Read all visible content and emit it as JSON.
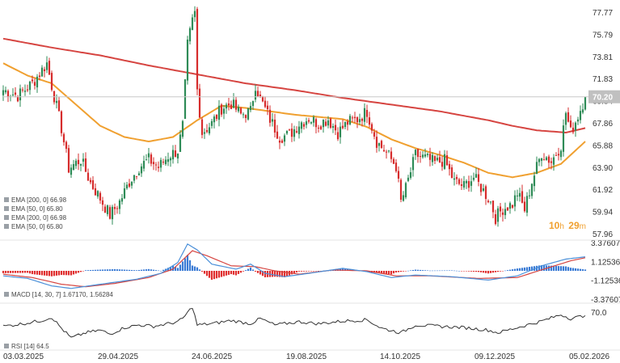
{
  "colors": {
    "bull": "#2e8b57",
    "bear": "#d62c2c",
    "ema200": "#d64541",
    "ema50": "#f0a030",
    "macd_line": "#4a90d9",
    "signal_line": "#d64541",
    "hist_pos": "#3a7bd5",
    "hist_neg": "#e03030",
    "rsi": "#333333",
    "price_tag": "#c0c0c0",
    "countdown": "#f0a030"
  },
  "chart_data": {
    "type": "candlestick",
    "price_axis": {
      "min": 57.96,
      "max": 77.77,
      "ticks": [
        "77.77",
        "75.79",
        "73.81",
        "71.83",
        "69.84",
        "67.86",
        "65.88",
        "63.90",
        "61.92",
        "59.94",
        "57.96"
      ]
    },
    "x_labels": [
      "03.03.2025",
      "29.04.2025",
      "24.06.2025",
      "19.08.2025",
      "14.10.2025",
      "09.12.2025",
      "05.02.2026"
    ],
    "last_price": "70.20",
    "countdown": {
      "hours": "10",
      "h_unit": "h",
      "minutes": "29",
      "m_unit": "m"
    },
    "price_keypoints": [
      [
        0,
        70.8
      ],
      [
        6,
        70.3
      ],
      [
        12,
        71.4
      ],
      [
        18,
        73.2
      ],
      [
        20,
        71.2
      ],
      [
        24,
        67.4
      ],
      [
        27,
        63.8
      ],
      [
        32,
        64.6
      ],
      [
        36,
        62.5
      ],
      [
        40,
        61.1
      ],
      [
        44,
        59.6
      ],
      [
        48,
        60.8
      ],
      [
        52,
        62.6
      ],
      [
        56,
        63.9
      ],
      [
        60,
        64.6
      ],
      [
        64,
        63.9
      ],
      [
        68,
        64.9
      ],
      [
        72,
        65.4
      ],
      [
        74,
        67.6
      ],
      [
        76,
        74.8
      ],
      [
        78,
        77.0
      ],
      [
        79,
        77.7
      ],
      [
        80,
        70.8
      ],
      [
        82,
        67.0
      ],
      [
        86,
        67.8
      ],
      [
        90,
        69.2
      ],
      [
        94,
        69.6
      ],
      [
        98,
        68.6
      ],
      [
        102,
        68.9
      ],
      [
        104,
        71.3
      ],
      [
        106,
        70.0
      ],
      [
        110,
        68.2
      ],
      [
        114,
        66.6
      ],
      [
        118,
        66.8
      ],
      [
        122,
        67.8
      ],
      [
        126,
        68.3
      ],
      [
        130,
        67.8
      ],
      [
        134,
        68.2
      ],
      [
        138,
        67.0
      ],
      [
        142,
        67.9
      ],
      [
        146,
        68.2
      ],
      [
        150,
        68.9
      ],
      [
        154,
        66.2
      ],
      [
        158,
        65.2
      ],
      [
        162,
        64.0
      ],
      [
        164,
        60.8
      ],
      [
        166,
        62.0
      ],
      [
        170,
        65.0
      ],
      [
        174,
        64.7
      ],
      [
        178,
        64.3
      ],
      [
        182,
        64.5
      ],
      [
        186,
        62.6
      ],
      [
        190,
        62.2
      ],
      [
        194,
        63.0
      ],
      [
        198,
        61.8
      ],
      [
        201,
        60.8
      ],
      [
        203,
        59.4
      ],
      [
        206,
        60.2
      ],
      [
        210,
        60.6
      ],
      [
        212,
        61.6
      ],
      [
        215,
        60.1
      ],
      [
        218,
        62.6
      ],
      [
        222,
        65.2
      ],
      [
        226,
        64.4
      ],
      [
        230,
        65.9
      ],
      [
        232,
        68.8
      ],
      [
        234,
        67.0
      ],
      [
        237,
        68.5
      ],
      [
        240,
        70.2
      ]
    ],
    "ema200_keypoints": [
      [
        0,
        75.4
      ],
      [
        20,
        74.6
      ],
      [
        40,
        73.9
      ],
      [
        60,
        73.0
      ],
      [
        80,
        72.2
      ],
      [
        100,
        71.4
      ],
      [
        120,
        70.8
      ],
      [
        140,
        70.1
      ],
      [
        160,
        69.5
      ],
      [
        180,
        68.9
      ],
      [
        200,
        68.1
      ],
      [
        210,
        67.6
      ],
      [
        220,
        67.2
      ],
      [
        232,
        67.0
      ],
      [
        240,
        67.4
      ]
    ],
    "ema50_keypoints": [
      [
        0,
        73.2
      ],
      [
        10,
        72.1
      ],
      [
        20,
        71.4
      ],
      [
        30,
        69.5
      ],
      [
        40,
        67.6
      ],
      [
        50,
        66.6
      ],
      [
        60,
        66.2
      ],
      [
        70,
        66.6
      ],
      [
        80,
        68.1
      ],
      [
        90,
        69.4
      ],
      [
        100,
        69.2
      ],
      [
        110,
        68.9
      ],
      [
        120,
        68.6
      ],
      [
        140,
        68.2
      ],
      [
        150,
        67.5
      ],
      [
        160,
        66.4
      ],
      [
        170,
        65.6
      ],
      [
        180,
        65.0
      ],
      [
        190,
        64.3
      ],
      [
        200,
        63.4
      ],
      [
        210,
        63.0
      ],
      [
        220,
        63.4
      ],
      [
        230,
        64.2
      ],
      [
        240,
        66.2
      ]
    ],
    "ema_legend": [
      "EMA [200, 0] 66.98",
      "EMA [50, 0] 65.80",
      "EMA [200, 0] 66.98",
      "EMA [50, 0] 65.80"
    ],
    "macd": {
      "legend": "MACD [14, 30, 7] 1.67170, 1.56284",
      "axis": {
        "min": -3.37607,
        "max": 3.37607,
        "ticks": [
          "3.37607",
          "1.12536",
          "-1.12536",
          "-3.37607"
        ]
      },
      "macd_keypoints": [
        [
          0,
          -0.6
        ],
        [
          10,
          -0.9
        ],
        [
          20,
          -1.8
        ],
        [
          28,
          -2.1
        ],
        [
          40,
          -1.6
        ],
        [
          55,
          -1.0
        ],
        [
          65,
          -0.3
        ],
        [
          72,
          1.0
        ],
        [
          76,
          3.2
        ],
        [
          80,
          2.5
        ],
        [
          86,
          0.8
        ],
        [
          96,
          0.2
        ],
        [
          102,
          0.8
        ],
        [
          108,
          -0.3
        ],
        [
          116,
          -0.7
        ],
        [
          126,
          -0.3
        ],
        [
          140,
          0.3
        ],
        [
          150,
          -0.1
        ],
        [
          160,
          -0.8
        ],
        [
          170,
          -0.5
        ],
        [
          185,
          -0.7
        ],
        [
          200,
          -1.1
        ],
        [
          212,
          -0.6
        ],
        [
          222,
          0.6
        ],
        [
          232,
          1.4
        ],
        [
          240,
          1.67
        ]
      ],
      "signal_keypoints": [
        [
          0,
          -0.4
        ],
        [
          12,
          -0.8
        ],
        [
          24,
          -1.6
        ],
        [
          34,
          -1.9
        ],
        [
          46,
          -1.5
        ],
        [
          60,
          -0.8
        ],
        [
          70,
          0.2
        ],
        [
          78,
          2.4
        ],
        [
          84,
          1.8
        ],
        [
          94,
          0.6
        ],
        [
          104,
          0.5
        ],
        [
          112,
          0.0
        ],
        [
          122,
          -0.4
        ],
        [
          136,
          0.1
        ],
        [
          150,
          0.0
        ],
        [
          162,
          -0.6
        ],
        [
          176,
          -0.6
        ],
        [
          196,
          -0.9
        ],
        [
          212,
          -0.8
        ],
        [
          224,
          0.3
        ],
        [
          234,
          1.2
        ],
        [
          240,
          1.56
        ]
      ]
    },
    "rsi": {
      "legend": "RSI [14] 64.5",
      "axis": {
        "min": 20,
        "max": 80,
        "ticks": [
          "70.0"
        ]
      },
      "keypoints": [
        [
          0,
          48
        ],
        [
          8,
          52
        ],
        [
          16,
          57
        ],
        [
          20,
          62
        ],
        [
          24,
          45
        ],
        [
          28,
          30
        ],
        [
          34,
          38
        ],
        [
          40,
          42
        ],
        [
          44,
          36
        ],
        [
          50,
          46
        ],
        [
          56,
          50
        ],
        [
          62,
          48
        ],
        [
          68,
          52
        ],
        [
          72,
          55
        ],
        [
          74,
          60
        ],
        [
          78,
          78
        ],
        [
          80,
          50
        ],
        [
          86,
          52
        ],
        [
          94,
          57
        ],
        [
          102,
          52
        ],
        [
          106,
          60
        ],
        [
          112,
          50
        ],
        [
          122,
          55
        ],
        [
          130,
          52
        ],
        [
          140,
          56
        ],
        [
          150,
          58
        ],
        [
          156,
          45
        ],
        [
          164,
          38
        ],
        [
          170,
          50
        ],
        [
          180,
          48
        ],
        [
          190,
          46
        ],
        [
          200,
          42
        ],
        [
          204,
          38
        ],
        [
          212,
          46
        ],
        [
          222,
          56
        ],
        [
          230,
          66
        ],
        [
          234,
          60
        ],
        [
          240,
          64.5
        ]
      ]
    }
  }
}
